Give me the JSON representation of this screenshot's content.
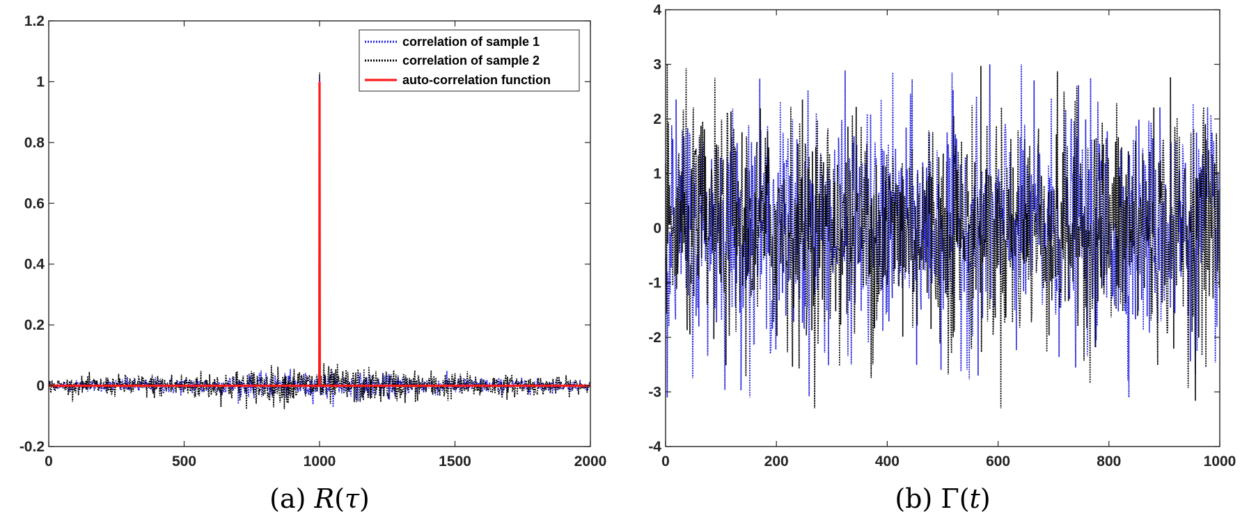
{
  "chart_data": [
    {
      "type": "line",
      "caption": {
        "prefix": "(a) ",
        "var": "R",
        "open": "(",
        "arg": "τ",
        "close": ")"
      },
      "xlim": [
        0,
        2000
      ],
      "ylim": [
        -0.2,
        1.2
      ],
      "xticks": [
        "0",
        "500",
        "1000",
        "1500",
        "2000"
      ],
      "yticks": [
        "-0.2",
        "0",
        "0.2",
        "0.4",
        "0.6",
        "0.8",
        "1",
        "1.2"
      ],
      "grid": false,
      "legend_position": "top-right",
      "series": [
        {
          "name": "correlation of sample 1",
          "color": "#1f1fe0",
          "style": "dotted",
          "peak": {
            "x": 1000,
            "y": 1.02
          },
          "envelope_max": 0.06,
          "envelope_min": -0.08
        },
        {
          "name": "correlation of sample 2",
          "color": "#000000",
          "style": "dotted",
          "peak": {
            "x": 1000,
            "y": 1.03
          },
          "envelope_max": 0.09,
          "envelope_min": -0.08
        },
        {
          "name": "auto-correlation function",
          "color": "#ff1a1a",
          "style": "solid",
          "x": [
            0,
            999,
            1000,
            1001,
            2000
          ],
          "y": [
            0,
            0,
            1,
            0,
            0
          ]
        }
      ]
    },
    {
      "type": "line",
      "caption": {
        "prefix": "(b) ",
        "var": "Γ",
        "open": "(",
        "arg": "t",
        "close": ")"
      },
      "xlim": [
        0,
        1000
      ],
      "ylim": [
        -4,
        4
      ],
      "xticks": [
        "0",
        "200",
        "400",
        "600",
        "800",
        "1000"
      ],
      "yticks": [
        "-4",
        "-3",
        "-2",
        "-1",
        "0",
        "1",
        "2",
        "3",
        "4"
      ],
      "grid": false,
      "series": [
        {
          "color": "#1f1fe0",
          "style": "dotted",
          "range": [
            -3.1,
            3.0
          ]
        },
        {
          "color": "#000000",
          "style": "dotted",
          "range": [
            -3.3,
            3.55
          ]
        }
      ]
    }
  ]
}
